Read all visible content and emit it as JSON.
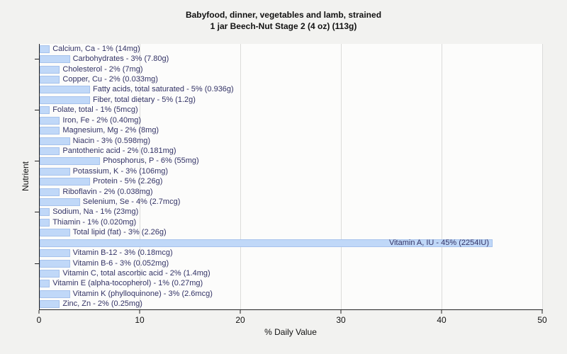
{
  "title": {
    "line1": "Babyfood, dinner, vegetables and lamb, strained",
    "line2": "1 jar Beech-Nut Stage 2 (4 oz) (113g)"
  },
  "colors": {
    "bar_fill": "#c0d8f8",
    "bar_border": "#a6c2ec",
    "bar_label_text": "#333366",
    "grid_line": "#dcdcda",
    "plot_background": "#fcfcfb",
    "page_background": "#f2f2f0",
    "axis_line": "#222222"
  },
  "chart_data": {
    "type": "bar",
    "orientation": "horizontal",
    "title": "Babyfood, dinner, vegetables and lamb, strained — 1 jar Beech-Nut Stage 2 (4 oz) (113g)",
    "xlabel": "% Daily Value",
    "ylabel": "Nutrient",
    "xlim": [
      0,
      50
    ],
    "x_ticks": [
      0,
      10,
      20,
      30,
      40,
      50
    ],
    "grid": true,
    "legend": false,
    "y_tick_rows": [
      2,
      7,
      12,
      17,
      22
    ],
    "rows_total": 26,
    "items": [
      {
        "label": "Calcium, Ca - 1% (14mg)",
        "nutrient": "Calcium, Ca",
        "percent": 1,
        "amount": "14mg"
      },
      {
        "label": "Carbohydrates - 3% (7.80g)",
        "nutrient": "Carbohydrates",
        "percent": 3,
        "amount": "7.80g"
      },
      {
        "label": "Cholesterol - 2% (7mg)",
        "nutrient": "Cholesterol",
        "percent": 2,
        "amount": "7mg"
      },
      {
        "label": "Copper, Cu - 2% (0.033mg)",
        "nutrient": "Copper, Cu",
        "percent": 2,
        "amount": "0.033mg"
      },
      {
        "label": "Fatty acids, total saturated - 5% (0.936g)",
        "nutrient": "Fatty acids, total saturated",
        "percent": 5,
        "amount": "0.936g"
      },
      {
        "label": "Fiber, total dietary - 5% (1.2g)",
        "nutrient": "Fiber, total dietary",
        "percent": 5,
        "amount": "1.2g"
      },
      {
        "label": "Folate, total - 1% (5mcg)",
        "nutrient": "Folate, total",
        "percent": 1,
        "amount": "5mcg"
      },
      {
        "label": "Iron, Fe - 2% (0.40mg)",
        "nutrient": "Iron, Fe",
        "percent": 2,
        "amount": "0.40mg"
      },
      {
        "label": "Magnesium, Mg - 2% (8mg)",
        "nutrient": "Magnesium, Mg",
        "percent": 2,
        "amount": "8mg"
      },
      {
        "label": "Niacin - 3% (0.598mg)",
        "nutrient": "Niacin",
        "percent": 3,
        "amount": "0.598mg"
      },
      {
        "label": "Pantothenic acid - 2% (0.181mg)",
        "nutrient": "Pantothenic acid",
        "percent": 2,
        "amount": "0.181mg"
      },
      {
        "label": "Phosphorus, P - 6% (55mg)",
        "nutrient": "Phosphorus, P",
        "percent": 6,
        "amount": "55mg"
      },
      {
        "label": "Potassium, K - 3% (106mg)",
        "nutrient": "Potassium, K",
        "percent": 3,
        "amount": "106mg"
      },
      {
        "label": "Protein - 5% (2.26g)",
        "nutrient": "Protein",
        "percent": 5,
        "amount": "2.26g"
      },
      {
        "label": "Riboflavin - 2% (0.038mg)",
        "nutrient": "Riboflavin",
        "percent": 2,
        "amount": "0.038mg"
      },
      {
        "label": "Selenium, Se - 4% (2.7mcg)",
        "nutrient": "Selenium, Se",
        "percent": 4,
        "amount": "2.7mcg"
      },
      {
        "label": "Sodium, Na - 1% (23mg)",
        "nutrient": "Sodium, Na",
        "percent": 1,
        "amount": "23mg"
      },
      {
        "label": "Thiamin - 1% (0.020mg)",
        "nutrient": "Thiamin",
        "percent": 1,
        "amount": "0.020mg"
      },
      {
        "label": "Total lipid (fat) - 3% (2.26g)",
        "nutrient": "Total lipid (fat)",
        "percent": 3,
        "amount": "2.26g"
      },
      {
        "label": "Vitamin A, IU - 45% (2254IU)",
        "nutrient": "Vitamin A, IU",
        "percent": 45,
        "amount": "2254IU"
      },
      {
        "label": "Vitamin B-12 - 3% (0.18mcg)",
        "nutrient": "Vitamin B-12",
        "percent": 3,
        "amount": "0.18mcg"
      },
      {
        "label": "Vitamin B-6 - 3% (0.052mg)",
        "nutrient": "Vitamin B-6",
        "percent": 3,
        "amount": "0.052mg"
      },
      {
        "label": "Vitamin C, total ascorbic acid - 2% (1.4mg)",
        "nutrient": "Vitamin C, total ascorbic acid",
        "percent": 2,
        "amount": "1.4mg"
      },
      {
        "label": "Vitamin E (alpha-tocopherol) - 1% (0.27mg)",
        "nutrient": "Vitamin E (alpha-tocopherol)",
        "percent": 1,
        "amount": "0.27mg"
      },
      {
        "label": "Vitamin K (phylloquinone) - 3% (2.6mcg)",
        "nutrient": "Vitamin K (phylloquinone)",
        "percent": 3,
        "amount": "2.6mcg"
      },
      {
        "label": "Zinc, Zn - 2% (0.25mg)",
        "nutrient": "Zinc, Zn",
        "percent": 2,
        "amount": "0.25mg"
      }
    ]
  }
}
